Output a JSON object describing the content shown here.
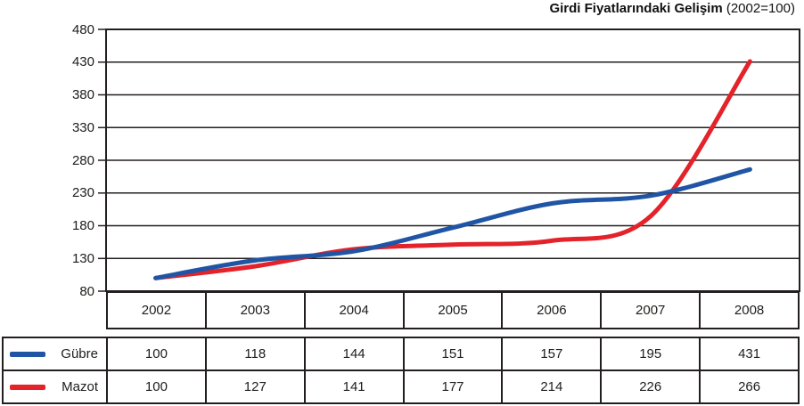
{
  "title": {
    "main": "Girdi Fiyatlarındaki Gelişim",
    "suffix": "(2002=100)"
  },
  "chart_data": {
    "type": "line",
    "title": "Girdi Fiyatlarındaki Gelişim (2002=100)",
    "categories": [
      "2002",
      "2003",
      "2004",
      "2005",
      "2006",
      "2007",
      "2008"
    ],
    "series": [
      {
        "name": "Gübre",
        "values": [
          100,
          118,
          144,
          151,
          157,
          195,
          431
        ],
        "line_color": "#e32229",
        "legend_color": "#1f55a4"
      },
      {
        "name": "Mazot",
        "values": [
          100,
          127,
          141,
          177,
          214,
          226,
          266
        ],
        "line_color": "#1f55a4",
        "legend_color": "#e32229"
      }
    ],
    "ylim": [
      80,
      480
    ],
    "yticks": [
      80,
      130,
      180,
      230,
      280,
      330,
      380,
      430,
      480
    ],
    "grid": true,
    "legend_position": "table-bottom-left",
    "xlabel": "",
    "ylabel": ""
  },
  "colors": {
    "border": "#231f20",
    "grid": "#231f20",
    "text": "#1d1d1b"
  }
}
